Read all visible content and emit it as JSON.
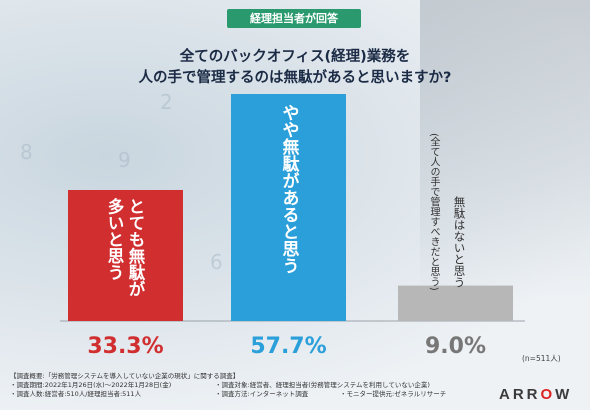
{
  "header": {
    "badge": "経理担当者が回答",
    "title_line1": "全てのバックオフィス(経理)業務を",
    "title_line2": "人の手で管理するのは無駄があると思いますか?"
  },
  "chart_data": {
    "type": "bar",
    "categories": [
      "とても無駄が多いと思う",
      "やや無駄があると思う",
      "無駄はないと思う"
    ],
    "category_sublabels": [
      "",
      "",
      "(全て人の手で管理すべきだと思う)"
    ],
    "values": [
      33.3,
      57.7,
      9.0
    ],
    "value_labels": [
      "33.3%",
      "57.7%",
      "9.0%"
    ],
    "colors": [
      "#d02e2f",
      "#2b9fd9",
      "#b7b7b7"
    ],
    "label_colors": [
      "#d02e2f",
      "#2b9fd9",
      "#777777"
    ],
    "ylim": [
      0,
      57.7
    ],
    "grid": false,
    "note": "(n=511人)"
  },
  "footer": {
    "line1": "【調査概要:「労務管理システムを導入していない企業の現状」に関する調査】",
    "line2a": "・調査期間:2022年1月26日(水)〜2022年1月28日(金)",
    "line2b": "・調査対象:経営者、経理担当者(労務管理システムを利用していない企業)",
    "line3a": "・調査人数:経営者:510人/経理担当者:511人",
    "line3b": "・調査方法:インターネット調査",
    "line3c": "・モニター提供元:ゼネラルリサーチ"
  },
  "logo": {
    "text_pre": "ARR",
    "text_o": "O",
    "text_post": "W"
  }
}
